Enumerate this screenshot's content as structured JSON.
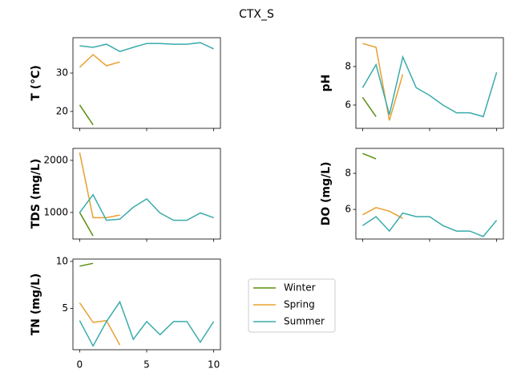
{
  "title": "CTX_S",
  "chart_data": [
    {
      "type": "line",
      "ylabel": "T  (°C)",
      "xlim": [
        -0.5,
        10.5
      ],
      "xticks": [
        0,
        5,
        10
      ],
      "show_xtick_labels": false,
      "ylim": [
        15.6,
        39.2
      ],
      "yticks": [
        20,
        30
      ],
      "series": [
        {
          "name": "Winter",
          "color": "#5a8f0e",
          "x": [
            0,
            1
          ],
          "values": [
            21.7,
            16.5
          ]
        },
        {
          "name": "Spring",
          "color": "#e8a030",
          "x": [
            0,
            1,
            2,
            3
          ],
          "values": [
            31.5,
            34.8,
            31.9,
            32.9
          ]
        },
        {
          "name": "Summer",
          "color": "#3aabab",
          "x": [
            0,
            1,
            2,
            3,
            4,
            5,
            6,
            7,
            8,
            9,
            10
          ],
          "values": [
            37.1,
            36.7,
            37.5,
            35.6,
            36.7,
            37.7,
            37.7,
            37.5,
            37.5,
            37.9,
            36.3
          ]
        }
      ]
    },
    {
      "type": "line",
      "ylabel": "pH",
      "xlim": [
        -0.5,
        10.5
      ],
      "xticks": [
        0,
        5,
        10
      ],
      "show_xtick_labels": false,
      "ylim": [
        4.79,
        9.5
      ],
      "yticks": [
        6,
        8
      ],
      "series": [
        {
          "name": "Winter",
          "color": "#5a8f0e",
          "x": [
            0,
            1
          ],
          "values": [
            6.4,
            5.4
          ]
        },
        {
          "name": "Spring",
          "color": "#e8a030",
          "x": [
            0,
            1,
            2,
            3
          ],
          "values": [
            9.2,
            9.0,
            5.2,
            7.6
          ]
        },
        {
          "name": "Summer",
          "color": "#3aabab",
          "x": [
            0,
            1,
            2,
            3,
            4,
            5,
            6,
            7,
            8,
            9,
            10
          ],
          "values": [
            6.9,
            8.1,
            5.5,
            8.5,
            6.9,
            6.5,
            6.0,
            5.6,
            5.6,
            5.4,
            7.7
          ]
        }
      ]
    },
    {
      "type": "line",
      "ylabel": "TDS (mg/L)",
      "xlim": [
        -0.5,
        10.5
      ],
      "xticks": [
        0,
        5,
        10
      ],
      "show_xtick_labels": false,
      "ylim": [
        490,
        2230
      ],
      "yticks": [
        1000,
        2000
      ],
      "series": [
        {
          "name": "Winter",
          "color": "#5a8f0e",
          "x": [
            0,
            1
          ],
          "values": [
            1000,
            550
          ]
        },
        {
          "name": "Spring",
          "color": "#e8a030",
          "x": [
            0,
            1,
            2,
            3
          ],
          "values": [
            2150,
            900,
            900,
            950
          ]
        },
        {
          "name": "Summer",
          "color": "#3aabab",
          "x": [
            0,
            1,
            2,
            3,
            4,
            5,
            6,
            7,
            8,
            9,
            10
          ],
          "values": [
            1000,
            1340,
            850,
            870,
            1100,
            1260,
            990,
            850,
            850,
            990,
            900
          ]
        }
      ]
    },
    {
      "type": "line",
      "ylabel": "DO (mg/L)",
      "xlim": [
        -0.5,
        10.5
      ],
      "xticks": [
        0,
        5,
        10
      ],
      "show_xtick_labels": false,
      "ylim": [
        4.36,
        9.38
      ],
      "yticks": [
        6,
        8
      ],
      "series": [
        {
          "name": "Winter",
          "color": "#5a8f0e",
          "x": [
            0,
            1
          ],
          "values": [
            9.1,
            8.8
          ]
        },
        {
          "name": "Spring",
          "color": "#e8a030",
          "x": [
            0,
            1,
            2,
            3
          ],
          "values": [
            5.7,
            6.1,
            5.9,
            5.5
          ]
        },
        {
          "name": "Summer",
          "color": "#3aabab",
          "x": [
            0,
            1,
            2,
            3,
            4,
            5,
            6,
            7,
            8,
            9,
            10
          ],
          "values": [
            5.1,
            5.6,
            4.8,
            5.8,
            5.6,
            5.6,
            5.1,
            4.8,
            4.8,
            4.5,
            5.4
          ]
        }
      ]
    },
    {
      "type": "line",
      "ylabel": "TN (mg/L)",
      "xlim": [
        -0.5,
        10.5
      ],
      "xticks": [
        0,
        5,
        10
      ],
      "show_xtick_labels": true,
      "ylim": [
        0.6,
        10.25
      ],
      "yticks": [
        5,
        10
      ],
      "series": [
        {
          "name": "Winter",
          "color": "#5a8f0e",
          "x": [
            0,
            1
          ],
          "values": [
            9.5,
            9.8
          ]
        },
        {
          "name": "Spring",
          "color": "#e8a030",
          "x": [
            0,
            1,
            2,
            3
          ],
          "values": [
            5.6,
            3.5,
            3.7,
            1.1
          ]
        },
        {
          "name": "Summer",
          "color": "#3aabab",
          "x": [
            0,
            1,
            2,
            3,
            4,
            5,
            6,
            7,
            8,
            9,
            10
          ],
          "values": [
            3.7,
            1.0,
            3.6,
            5.7,
            1.7,
            3.6,
            2.2,
            3.6,
            3.6,
            1.4,
            3.6
          ]
        }
      ]
    }
  ]
}
